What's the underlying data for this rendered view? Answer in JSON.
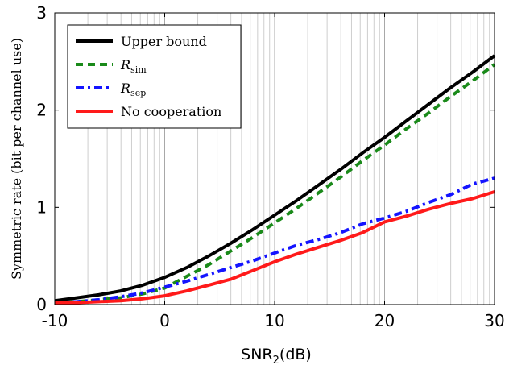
{
  "chart_data": {
    "type": "line",
    "title": "",
    "xlabel": "SNR",
    "xlabel_sub": "2",
    "xlabel_unit": "(dB)",
    "ylabel": "Symmetric rate (bit per channel use)",
    "xlim": [
      -10,
      30
    ],
    "ylim": [
      0,
      3
    ],
    "x_ticks": [
      -10,
      0,
      10,
      20,
      30
    ],
    "x_tick_labels": [
      "-10",
      "0",
      "10",
      "20",
      "30"
    ],
    "y_ticks": [
      0,
      1,
      2,
      3
    ],
    "y_tick_labels": [
      "0",
      "1",
      "2",
      "3"
    ],
    "xscale": "log-like minor grid (1..10 per decade)",
    "grid": "vertical minor and major gridlines",
    "legend_position": "top-left",
    "series": [
      {
        "name": "Upper bound",
        "name_base": "Upper bound",
        "name_sub": "",
        "color": "#000000",
        "style": "solid",
        "x": [
          -10,
          -8,
          -6,
          -4,
          -2,
          0,
          2,
          4,
          6,
          8,
          10,
          12,
          14,
          16,
          18,
          20,
          22,
          24,
          26,
          28,
          30
        ],
        "y": [
          0.04,
          0.07,
          0.1,
          0.14,
          0.2,
          0.28,
          0.38,
          0.5,
          0.63,
          0.77,
          0.92,
          1.07,
          1.23,
          1.39,
          1.56,
          1.72,
          1.89,
          2.06,
          2.23,
          2.39,
          2.56
        ]
      },
      {
        "name": "R_sim",
        "name_base": "R",
        "name_sub": "sim",
        "color": "#1a8a1a",
        "style": "dashed",
        "x": [
          -10,
          -8,
          -6,
          -4,
          -2,
          0,
          2,
          4,
          6,
          8,
          10,
          12,
          14,
          16,
          18,
          20,
          22,
          24,
          26,
          28,
          30
        ],
        "y": [
          0.02,
          0.03,
          0.05,
          0.07,
          0.11,
          0.17,
          0.29,
          0.41,
          0.55,
          0.69,
          0.84,
          0.99,
          1.15,
          1.31,
          1.48,
          1.64,
          1.81,
          1.97,
          2.14,
          2.3,
          2.47
        ]
      },
      {
        "name": "R_sep",
        "name_base": "R",
        "name_sub": "sep",
        "color": "#1414ff",
        "style": "dashdot",
        "x": [
          -10,
          -8,
          -6,
          -4,
          -2,
          0,
          2,
          4,
          6,
          8,
          10,
          12,
          14,
          16,
          18,
          20,
          22,
          24,
          26,
          28,
          30
        ],
        "y": [
          0.02,
          0.03,
          0.05,
          0.08,
          0.12,
          0.18,
          0.24,
          0.31,
          0.38,
          0.45,
          0.53,
          0.61,
          0.67,
          0.74,
          0.83,
          0.89,
          0.96,
          1.05,
          1.13,
          1.24,
          1.3
        ]
      },
      {
        "name": "No cooperation",
        "name_base": "No cooperation",
        "name_sub": "",
        "color": "#ff1a1a",
        "style": "solid",
        "x": [
          -10,
          -8,
          -6,
          -4,
          -2,
          0,
          2,
          4,
          6,
          8,
          10,
          12,
          14,
          16,
          18,
          20,
          22,
          24,
          26,
          28,
          30
        ],
        "y": [
          0.02,
          0.02,
          0.03,
          0.04,
          0.06,
          0.09,
          0.14,
          0.2,
          0.26,
          0.35,
          0.44,
          0.52,
          0.59,
          0.66,
          0.74,
          0.85,
          0.91,
          0.98,
          1.04,
          1.09,
          1.16
        ]
      }
    ]
  }
}
